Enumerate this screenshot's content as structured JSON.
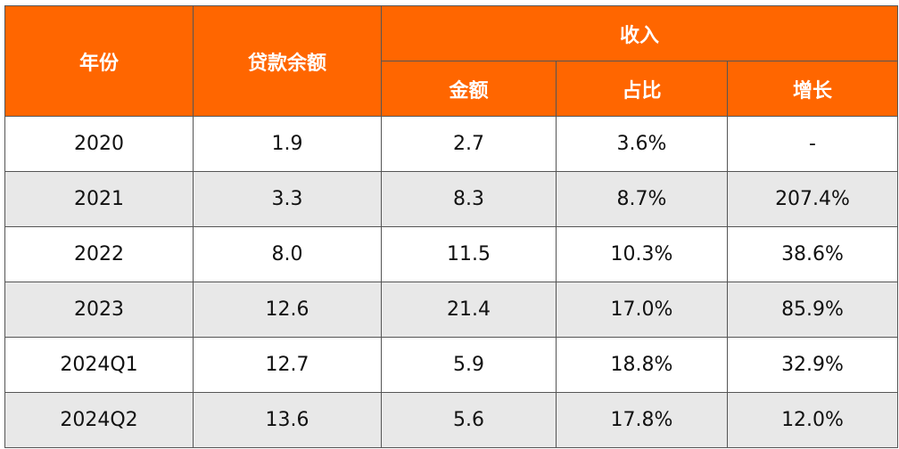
{
  "table": {
    "header": {
      "year": "年份",
      "loan": "贷款余额",
      "income": "收入",
      "sub": [
        "金额",
        "占比",
        "增长"
      ]
    },
    "rows": [
      [
        "2020",
        "1.9",
        "2.7",
        "3.6%",
        "-"
      ],
      [
        "2021",
        "3.3",
        "8.3",
        "8.7%",
        "207.4%"
      ],
      [
        "2022",
        "8.0",
        "11.5",
        "10.3%",
        "38.6%"
      ],
      [
        "2023",
        "12.6",
        "21.4",
        "17.0%",
        "85.9%"
      ],
      [
        "2024Q1",
        "12.7",
        "5.9",
        "18.8%",
        "32.9%"
      ],
      [
        "2024Q2",
        "13.6",
        "5.6",
        "17.8%",
        "12.0%"
      ]
    ]
  }
}
